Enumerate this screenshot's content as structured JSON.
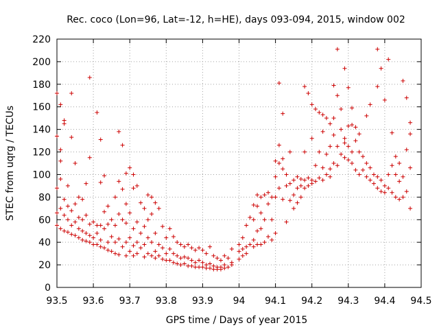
{
  "chart_data": {
    "type": "scatter",
    "title": "Rec. coco (Lon=96, Lat=-12, h=HE), days 093-094, 2015, window 002",
    "xlabel": "GPS time / Days of year 2015",
    "ylabel": "STEC from uqrg / TECUs",
    "xlim": [
      93.5,
      94.5
    ],
    "ylim": [
      0,
      220
    ],
    "xticks": [
      "93.5",
      "93.6",
      "93.7",
      "93.8",
      "93.9",
      "94",
      "94.1",
      "94.2",
      "94.3",
      "94.4",
      "94.5"
    ],
    "yticks": [
      "0",
      "20",
      "40",
      "60",
      "80",
      "100",
      "120",
      "140",
      "160",
      "180",
      "200",
      "220"
    ],
    "grid": true,
    "marker": "+",
    "color": "#cc0000",
    "points": [
      [
        93.5,
        172
      ],
      [
        93.5,
        134
      ],
      [
        93.5,
        88
      ],
      [
        93.5,
        66
      ],
      [
        93.5,
        55
      ],
      [
        93.51,
        112
      ],
      [
        93.51,
        162
      ],
      [
        93.51,
        122
      ],
      [
        93.51,
        96
      ],
      [
        93.51,
        70
      ],
      [
        93.51,
        52
      ],
      [
        93.52,
        148
      ],
      [
        93.52,
        145
      ],
      [
        93.52,
        78
      ],
      [
        93.52,
        64
      ],
      [
        93.52,
        50
      ],
      [
        93.53,
        90
      ],
      [
        93.53,
        72
      ],
      [
        93.53,
        60
      ],
      [
        93.53,
        49
      ],
      [
        93.54,
        172
      ],
      [
        93.54,
        133
      ],
      [
        93.54,
        68
      ],
      [
        93.54,
        55
      ],
      [
        93.54,
        47
      ],
      [
        93.55,
        110
      ],
      [
        93.55,
        74
      ],
      [
        93.55,
        58
      ],
      [
        93.55,
        46
      ],
      [
        93.56,
        80
      ],
      [
        93.56,
        62
      ],
      [
        93.56,
        52
      ],
      [
        93.56,
        44
      ],
      [
        93.57,
        78
      ],
      [
        93.57,
        60
      ],
      [
        93.57,
        50
      ],
      [
        93.57,
        42
      ],
      [
        93.58,
        92
      ],
      [
        93.58,
        64
      ],
      [
        93.58,
        48
      ],
      [
        93.58,
        41
      ],
      [
        93.59,
        115
      ],
      [
        93.59,
        186
      ],
      [
        93.59,
        56
      ],
      [
        93.59,
        46
      ],
      [
        93.59,
        40
      ],
      [
        93.6,
        58
      ],
      [
        93.6,
        44
      ],
      [
        93.6,
        38
      ],
      [
        93.61,
        155
      ],
      [
        93.61,
        55
      ],
      [
        93.61,
        48
      ],
      [
        93.61,
        38
      ],
      [
        93.62,
        131
      ],
      [
        93.62,
        93
      ],
      [
        93.62,
        55
      ],
      [
        93.62,
        42
      ],
      [
        93.62,
        36
      ],
      [
        93.63,
        99
      ],
      [
        93.63,
        67
      ],
      [
        93.63,
        52
      ],
      [
        93.63,
        35
      ],
      [
        93.64,
        72
      ],
      [
        93.64,
        56
      ],
      [
        93.64,
        40
      ],
      [
        93.64,
        33
      ],
      [
        93.65,
        60
      ],
      [
        93.65,
        45
      ],
      [
        93.65,
        32
      ],
      [
        93.66,
        80
      ],
      [
        93.66,
        55
      ],
      [
        93.66,
        40
      ],
      [
        93.66,
        30
      ],
      [
        93.67,
        138
      ],
      [
        93.67,
        94
      ],
      [
        93.67,
        65
      ],
      [
        93.67,
        43
      ],
      [
        93.67,
        29
      ],
      [
        93.68,
        126
      ],
      [
        93.68,
        87
      ],
      [
        93.68,
        60
      ],
      [
        93.68,
        36
      ],
      [
        93.69,
        101
      ],
      [
        93.69,
        74
      ],
      [
        93.69,
        57
      ],
      [
        93.69,
        40
      ],
      [
        93.69,
        28
      ],
      [
        93.7,
        106
      ],
      [
        93.7,
        66
      ],
      [
        93.7,
        44
      ],
      [
        93.7,
        32
      ],
      [
        93.71,
        100
      ],
      [
        93.71,
        88
      ],
      [
        93.71,
        52
      ],
      [
        93.71,
        37
      ],
      [
        93.71,
        28
      ],
      [
        93.72,
        90
      ],
      [
        93.72,
        58
      ],
      [
        93.72,
        40
      ],
      [
        93.72,
        30
      ],
      [
        93.73,
        75
      ],
      [
        93.73,
        48
      ],
      [
        93.73,
        35
      ],
      [
        93.74,
        70
      ],
      [
        93.74,
        54
      ],
      [
        93.74,
        38
      ],
      [
        93.74,
        27
      ],
      [
        93.75,
        82
      ],
      [
        93.75,
        60
      ],
      [
        93.75,
        44
      ],
      [
        93.75,
        30
      ],
      [
        93.76,
        80
      ],
      [
        93.76,
        65
      ],
      [
        93.76,
        40
      ],
      [
        93.76,
        28
      ],
      [
        93.77,
        75
      ],
      [
        93.77,
        48
      ],
      [
        93.77,
        32
      ],
      [
        93.77,
        26
      ],
      [
        93.78,
        70
      ],
      [
        93.78,
        38
      ],
      [
        93.78,
        28
      ],
      [
        93.79,
        54
      ],
      [
        93.79,
        35
      ],
      [
        93.79,
        25
      ],
      [
        93.8,
        44
      ],
      [
        93.8,
        30
      ],
      [
        93.8,
        24
      ],
      [
        93.81,
        52
      ],
      [
        93.81,
        34
      ],
      [
        93.81,
        24
      ],
      [
        93.82,
        45
      ],
      [
        93.82,
        30
      ],
      [
        93.82,
        22
      ],
      [
        93.83,
        40
      ],
      [
        93.83,
        28
      ],
      [
        93.83,
        21
      ],
      [
        93.84,
        38
      ],
      [
        93.84,
        26
      ],
      [
        93.84,
        20
      ],
      [
        93.85,
        36
      ],
      [
        93.85,
        27
      ],
      [
        93.85,
        21
      ],
      [
        93.86,
        38
      ],
      [
        93.86,
        26
      ],
      [
        93.86,
        19
      ],
      [
        93.87,
        35
      ],
      [
        93.87,
        24
      ],
      [
        93.87,
        19
      ],
      [
        93.88,
        33
      ],
      [
        93.88,
        22
      ],
      [
        93.88,
        18
      ],
      [
        93.89,
        35
      ],
      [
        93.89,
        24
      ],
      [
        93.89,
        18
      ],
      [
        93.9,
        33
      ],
      [
        93.9,
        22
      ],
      [
        93.9,
        18
      ],
      [
        93.91,
        30
      ],
      [
        93.91,
        20
      ],
      [
        93.91,
        17
      ],
      [
        93.92,
        36
      ],
      [
        93.92,
        21
      ],
      [
        93.92,
        17
      ],
      [
        93.93,
        28
      ],
      [
        93.93,
        19
      ],
      [
        93.93,
        16
      ],
      [
        93.94,
        26
      ],
      [
        93.94,
        18
      ],
      [
        93.94,
        16
      ],
      [
        93.95,
        24
      ],
      [
        93.95,
        18
      ],
      [
        93.95,
        16
      ],
      [
        93.96,
        28
      ],
      [
        93.96,
        20
      ],
      [
        93.96,
        17
      ],
      [
        93.97,
        26
      ],
      [
        93.97,
        18
      ],
      [
        93.98,
        34
      ],
      [
        93.98,
        22
      ],
      [
        93.98,
        20
      ],
      [
        94.0,
        38
      ],
      [
        94.0,
        32
      ],
      [
        94.0,
        25
      ],
      [
        94.01,
        44
      ],
      [
        94.01,
        34
      ],
      [
        94.01,
        28
      ],
      [
        94.02,
        55
      ],
      [
        94.02,
        36
      ],
      [
        94.02,
        30
      ],
      [
        94.03,
        62
      ],
      [
        94.03,
        38
      ],
      [
        94.04,
        73
      ],
      [
        94.04,
        60
      ],
      [
        94.04,
        42
      ],
      [
        94.04,
        36
      ],
      [
        94.05,
        82
      ],
      [
        94.05,
        72
      ],
      [
        94.05,
        50
      ],
      [
        94.05,
        38
      ],
      [
        94.06,
        80
      ],
      [
        94.06,
        66
      ],
      [
        94.06,
        52
      ],
      [
        94.06,
        38
      ],
      [
        94.07,
        82
      ],
      [
        94.07,
        60
      ],
      [
        94.07,
        40
      ],
      [
        94.08,
        84
      ],
      [
        94.08,
        74
      ],
      [
        94.08,
        45
      ],
      [
        94.09,
        80
      ],
      [
        94.09,
        60
      ],
      [
        94.09,
        42
      ],
      [
        94.1,
        112
      ],
      [
        94.1,
        98
      ],
      [
        94.1,
        80
      ],
      [
        94.1,
        48
      ],
      [
        94.11,
        181
      ],
      [
        94.11,
        126
      ],
      [
        94.11,
        110
      ],
      [
        94.11,
        88
      ],
      [
        94.12,
        154
      ],
      [
        94.12,
        114
      ],
      [
        94.12,
        105
      ],
      [
        94.12,
        78
      ],
      [
        94.13,
        100
      ],
      [
        94.13,
        90
      ],
      [
        94.13,
        58
      ],
      [
        94.14,
        120
      ],
      [
        94.14,
        92
      ],
      [
        94.14,
        77
      ],
      [
        94.15,
        95
      ],
      [
        94.15,
        82
      ],
      [
        94.15,
        70
      ],
      [
        94.16,
        98
      ],
      [
        94.16,
        88
      ],
      [
        94.16,
        75
      ],
      [
        94.17,
        96
      ],
      [
        94.17,
        90
      ],
      [
        94.17,
        80
      ],
      [
        94.18,
        178
      ],
      [
        94.18,
        120
      ],
      [
        94.18,
        95
      ],
      [
        94.18,
        88
      ],
      [
        94.19,
        172
      ],
      [
        94.19,
        97
      ],
      [
        94.19,
        90
      ],
      [
        94.2,
        162
      ],
      [
        94.2,
        132
      ],
      [
        94.2,
        95
      ],
      [
        94.2,
        92
      ],
      [
        94.21,
        158
      ],
      [
        94.21,
        108
      ],
      [
        94.21,
        94
      ],
      [
        94.22,
        155
      ],
      [
        94.22,
        120
      ],
      [
        94.22,
        97
      ],
      [
        94.23,
        153
      ],
      [
        94.23,
        138
      ],
      [
        94.23,
        106
      ],
      [
        94.23,
        95
      ],
      [
        94.24,
        150
      ],
      [
        94.24,
        118
      ],
      [
        94.24,
        100
      ],
      [
        94.25,
        145
      ],
      [
        94.25,
        125
      ],
      [
        94.25,
        105
      ],
      [
        94.25,
        98
      ],
      [
        94.26,
        179
      ],
      [
        94.26,
        150
      ],
      [
        94.26,
        135
      ],
      [
        94.26,
        110
      ],
      [
        94.27,
        211
      ],
      [
        94.27,
        170
      ],
      [
        94.27,
        125
      ],
      [
        94.27,
        108
      ],
      [
        94.28,
        158
      ],
      [
        94.28,
        140
      ],
      [
        94.28,
        118
      ],
      [
        94.29,
        194
      ],
      [
        94.29,
        132
      ],
      [
        94.29,
        128
      ],
      [
        94.29,
        115
      ],
      [
        94.3,
        177
      ],
      [
        94.3,
        143
      ],
      [
        94.3,
        125
      ],
      [
        94.3,
        113
      ],
      [
        94.31,
        159
      ],
      [
        94.31,
        144
      ],
      [
        94.31,
        120
      ],
      [
        94.31,
        110
      ],
      [
        94.32,
        142
      ],
      [
        94.32,
        130
      ],
      [
        94.32,
        104
      ],
      [
        94.33,
        136
      ],
      [
        94.33,
        120
      ],
      [
        94.33,
        100
      ],
      [
        94.34,
        116
      ],
      [
        94.34,
        104
      ],
      [
        94.35,
        152
      ],
      [
        94.35,
        110
      ],
      [
        94.35,
        98
      ],
      [
        94.36,
        162
      ],
      [
        94.36,
        106
      ],
      [
        94.36,
        95
      ],
      [
        94.37,
        100
      ],
      [
        94.37,
        92
      ],
      [
        94.38,
        211
      ],
      [
        94.38,
        178
      ],
      [
        94.38,
        98
      ],
      [
        94.38,
        88
      ],
      [
        94.39,
        194
      ],
      [
        94.39,
        95
      ],
      [
        94.39,
        85
      ],
      [
        94.4,
        166
      ],
      [
        94.4,
        90
      ],
      [
        94.4,
        84
      ],
      [
        94.41,
        202
      ],
      [
        94.41,
        100
      ],
      [
        94.41,
        88
      ],
      [
        94.42,
        137
      ],
      [
        94.42,
        108
      ],
      [
        94.42,
        84
      ],
      [
        94.43,
        116
      ],
      [
        94.43,
        100
      ],
      [
        94.43,
        80
      ],
      [
        94.44,
        110
      ],
      [
        94.44,
        94
      ],
      [
        94.44,
        78
      ],
      [
        94.45,
        183
      ],
      [
        94.45,
        98
      ],
      [
        94.45,
        80
      ],
      [
        94.46,
        168
      ],
      [
        94.46,
        122
      ],
      [
        94.46,
        85
      ],
      [
        94.47,
        146
      ],
      [
        94.47,
        136
      ],
      [
        94.47,
        106
      ],
      [
        94.47,
        70
      ]
    ]
  }
}
